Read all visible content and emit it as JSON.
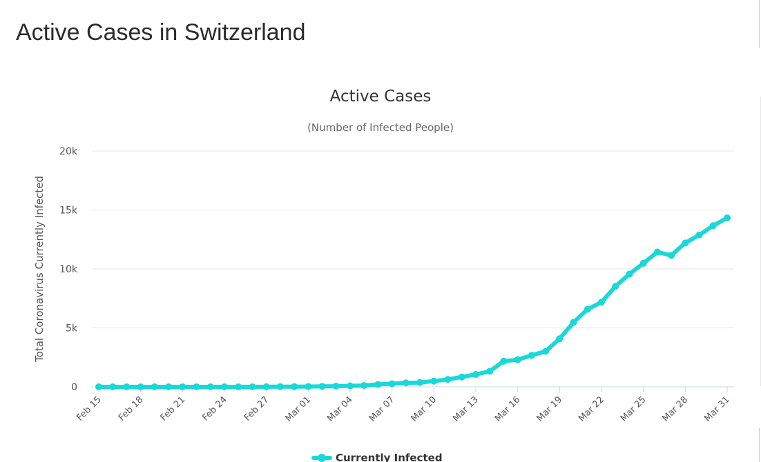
{
  "page": {
    "title": "Active Cases in Switzerland"
  },
  "chart_data": {
    "type": "line",
    "title": "Active Cases",
    "subtitle": "(Number of Infected People)",
    "xlabel": "",
    "ylabel": "Total Coronavirus Currently Infected",
    "ylim": [
      0,
      20000
    ],
    "yticks": [
      0,
      5000,
      10000,
      15000,
      20000
    ],
    "ytick_labels": [
      "0",
      "5k",
      "10k",
      "15k",
      "20k"
    ],
    "grid": true,
    "legend_position": "bottom-center",
    "x": [
      "Feb 15",
      "Feb 16",
      "Feb 17",
      "Feb 18",
      "Feb 19",
      "Feb 20",
      "Feb 21",
      "Feb 22",
      "Feb 23",
      "Feb 24",
      "Feb 25",
      "Feb 26",
      "Feb 27",
      "Feb 28",
      "Feb 29",
      "Mar 01",
      "Mar 02",
      "Mar 03",
      "Mar 04",
      "Mar 05",
      "Mar 06",
      "Mar 07",
      "Mar 08",
      "Mar 09",
      "Mar 10",
      "Mar 11",
      "Mar 12",
      "Mar 13",
      "Mar 14",
      "Mar 15",
      "Mar 16",
      "Mar 17",
      "Mar 18",
      "Mar 19",
      "Mar 20",
      "Mar 21",
      "Mar 22",
      "Mar 23",
      "Mar 24",
      "Mar 25",
      "Mar 26",
      "Mar 27",
      "Mar 28",
      "Mar 29",
      "Mar 30",
      "Mar 31"
    ],
    "x_tick_labels": [
      "Feb 15",
      "Feb 18",
      "Feb 21",
      "Feb 24",
      "Feb 27",
      "Mar 01",
      "Mar 04",
      "Mar 07",
      "Mar 10",
      "Mar 13",
      "Mar 16",
      "Mar 19",
      "Mar 22",
      "Mar 25",
      "Mar 28",
      "Mar 31"
    ],
    "series": [
      {
        "name": "Currently Infected",
        "color": "#1ad8d8",
        "values": [
          0,
          0,
          0,
          0,
          0,
          0,
          0,
          0,
          0,
          0,
          1,
          1,
          8,
          15,
          18,
          26,
          40,
          55,
          85,
          112,
          208,
          266,
          335,
          371,
          486,
          630,
          835,
          1050,
          1320,
          2180,
          2300,
          2670,
          3010,
          4080,
          5470,
          6580,
          7180,
          8520,
          9560,
          10480,
          11430,
          11150,
          12200,
          12880,
          13670,
          14330
        ]
      }
    ]
  }
}
